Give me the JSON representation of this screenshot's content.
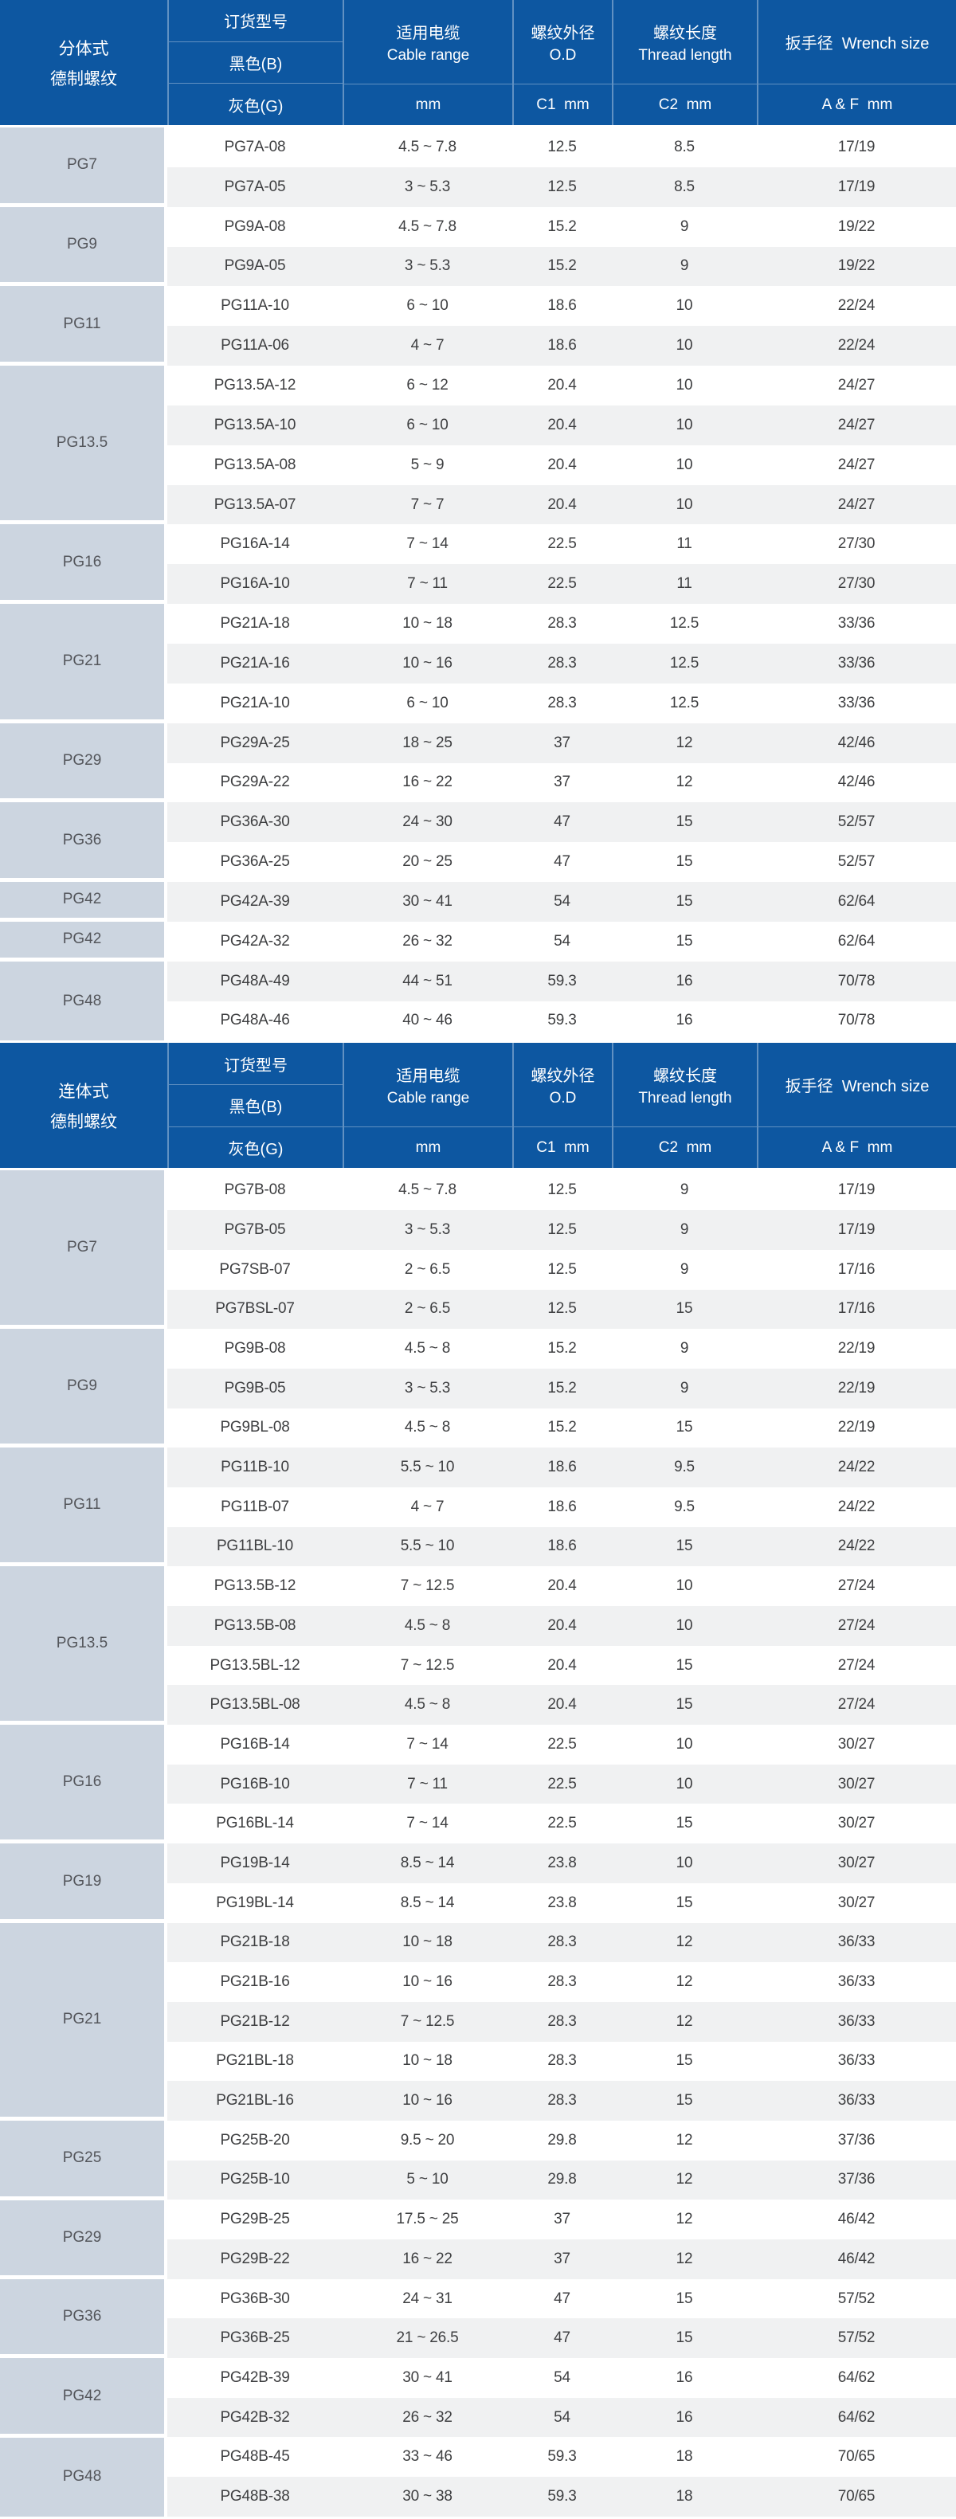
{
  "colors": {
    "header_blue": "#0d57a1",
    "size_cell_bg": "#ccd5e0",
    "size_cell_text": "#54565b",
    "row_bg": "#ffffff",
    "row_alt_bg": "#f0f1f2",
    "body_text": "#3e3f41",
    "header_text": "#ffffff"
  },
  "sections": [
    {
      "type_line1": "分体式",
      "type_line2": "德制螺纹",
      "header": {
        "order_label": "订货型号",
        "black_label": "黑色(B)",
        "gray_label": "灰色(G)",
        "cable_zh": "适用电缆",
        "cable_en": "Cable range",
        "cable_unit": "mm",
        "od_zh": "螺纹外径",
        "od_en": "O.D",
        "od_unit": "C1  mm",
        "len_zh": "螺纹长度",
        "len_en": "Thread length",
        "len_unit": "C2  mm",
        "wrench_zh": "扳手径  Wrench size",
        "wrench_en": "",
        "wrench_unit": "A & F  mm"
      },
      "groups": [
        {
          "size": "PG7",
          "rows": [
            [
              "PG7A-08",
              "4.5 ~ 7.8",
              "12.5",
              "8.5",
              "17/19"
            ],
            [
              "PG7A-05",
              "3 ~ 5.3",
              "12.5",
              "8.5",
              "17/19"
            ]
          ]
        },
        {
          "size": "PG9",
          "rows": [
            [
              "PG9A-08",
              "4.5 ~ 7.8",
              "15.2",
              "9",
              "19/22"
            ],
            [
              "PG9A-05",
              "3 ~ 5.3",
              "15.2",
              "9",
              "19/22"
            ]
          ]
        },
        {
          "size": "PG11",
          "rows": [
            [
              "PG11A-10",
              "6 ~ 10",
              "18.6",
              "10",
              "22/24"
            ],
            [
              "PG11A-06",
              "4 ~ 7",
              "18.6",
              "10",
              "22/24"
            ]
          ]
        },
        {
          "size": "PG13.5",
          "rows": [
            [
              "PG13.5A-12",
              "6 ~ 12",
              "20.4",
              "10",
              "24/27"
            ],
            [
              "PG13.5A-10",
              "6 ~ 10",
              "20.4",
              "10",
              "24/27"
            ],
            [
              "PG13.5A-08",
              "5 ~ 9",
              "20.4",
              "10",
              "24/27"
            ],
            [
              "PG13.5A-07",
              "7 ~ 7",
              "20.4",
              "10",
              "24/27"
            ]
          ]
        },
        {
          "size": "PG16",
          "rows": [
            [
              "PG16A-14",
              "7 ~ 14",
              "22.5",
              "11",
              "27/30"
            ],
            [
              "PG16A-10",
              "7 ~ 11",
              "22.5",
              "11",
              "27/30"
            ]
          ]
        },
        {
          "size": "PG21",
          "rows": [
            [
              "PG21A-18",
              "10 ~ 18",
              "28.3",
              "12.5",
              "33/36"
            ],
            [
              "PG21A-16",
              "10 ~ 16",
              "28.3",
              "12.5",
              "33/36"
            ],
            [
              "PG21A-10",
              "6 ~ 10",
              "28.3",
              "12.5",
              "33/36"
            ]
          ]
        },
        {
          "size": "PG29",
          "rows": [
            [
              "PG29A-25",
              "18 ~ 25",
              "37",
              "12",
              "42/46"
            ],
            [
              "PG29A-22",
              "16 ~ 22",
              "37",
              "12",
              "42/46"
            ]
          ]
        },
        {
          "size": "PG36",
          "rows": [
            [
              "PG36A-30",
              "24 ~ 30",
              "47",
              "15",
              "52/57"
            ],
            [
              "PG36A-25",
              "20 ~ 25",
              "47",
              "15",
              "52/57"
            ]
          ]
        },
        {
          "size": "PG42",
          "rows": [
            [
              "PG42A-39",
              "30 ~ 41",
              "54",
              "15",
              "62/64"
            ]
          ]
        },
        {
          "size": "PG42",
          "rows": [
            [
              "PG42A-32",
              "26 ~ 32",
              "54",
              "15",
              "62/64"
            ]
          ]
        },
        {
          "size": "PG48",
          "rows": [
            [
              "PG48A-49",
              "44 ~ 51",
              "59.3",
              "16",
              "70/78"
            ],
            [
              "PG48A-46",
              "40 ~ 46",
              "59.3",
              "16",
              "70/78"
            ]
          ]
        }
      ]
    },
    {
      "type_line1": "连体式",
      "type_line2": "德制螺纹",
      "header": {
        "order_label": "订货型号",
        "black_label": "黑色(B)",
        "gray_label": "灰色(G)",
        "cable_zh": "适用电缆",
        "cable_en": "Cable range",
        "cable_unit": "mm",
        "od_zh": "螺纹外径",
        "od_en": "O.D",
        "od_unit": "C1  mm",
        "len_zh": "螺纹长度",
        "len_en": "Thread length",
        "len_unit": "C2  mm",
        "wrench_zh": "扳手径  Wrench size",
        "wrench_en": "",
        "wrench_unit": "A & F  mm"
      },
      "groups": [
        {
          "size": "PG7",
          "rows": [
            [
              "PG7B-08",
              "4.5 ~ 7.8",
              "12.5",
              "9",
              "17/19"
            ],
            [
              "PG7B-05",
              "3 ~ 5.3",
              "12.5",
              "9",
              "17/19"
            ],
            [
              "PG7SB-07",
              "2 ~ 6.5",
              "12.5",
              "9",
              "17/16"
            ],
            [
              "PG7BSL-07",
              "2 ~ 6.5",
              "12.5",
              "15",
              "17/16"
            ]
          ]
        },
        {
          "size": "PG9",
          "rows": [
            [
              "PG9B-08",
              "4.5 ~ 8",
              "15.2",
              "9",
              "22/19"
            ],
            [
              "PG9B-05",
              "3 ~ 5.3",
              "15.2",
              "9",
              "22/19"
            ],
            [
              "PG9BL-08",
              "4.5 ~ 8",
              "15.2",
              "15",
              "22/19"
            ]
          ]
        },
        {
          "size": "PG11",
          "rows": [
            [
              "PG11B-10",
              "5.5 ~ 10",
              "18.6",
              "9.5",
              "24/22"
            ],
            [
              "PG11B-07",
              "4 ~ 7",
              "18.6",
              "9.5",
              "24/22"
            ],
            [
              "PG11BL-10",
              "5.5 ~ 10",
              "18.6",
              "15",
              "24/22"
            ]
          ]
        },
        {
          "size": "PG13.5",
          "rows": [
            [
              "PG13.5B-12",
              "7 ~ 12.5",
              "20.4",
              "10",
              "27/24"
            ],
            [
              "PG13.5B-08",
              "4.5 ~ 8",
              "20.4",
              "10",
              "27/24"
            ],
            [
              "PG13.5BL-12",
              "7 ~ 12.5",
              "20.4",
              "15",
              "27/24"
            ],
            [
              "PG13.5BL-08",
              "4.5 ~ 8",
              "20.4",
              "15",
              "27/24"
            ]
          ]
        },
        {
          "size": "PG16",
          "rows": [
            [
              "PG16B-14",
              "7 ~ 14",
              "22.5",
              "10",
              "30/27"
            ],
            [
              "PG16B-10",
              "7 ~ 11",
              "22.5",
              "10",
              "30/27"
            ],
            [
              "PG16BL-14",
              "7 ~ 14",
              "22.5",
              "15",
              "30/27"
            ]
          ]
        },
        {
          "size": "PG19",
          "rows": [
            [
              "PG19B-14",
              "8.5 ~ 14",
              "23.8",
              "10",
              "30/27"
            ],
            [
              "PG19BL-14",
              "8.5 ~ 14",
              "23.8",
              "15",
              "30/27"
            ]
          ]
        },
        {
          "size": "PG21",
          "rows": [
            [
              "PG21B-18",
              "10 ~ 18",
              "28.3",
              "12",
              "36/33"
            ],
            [
              "PG21B-16",
              "10 ~ 16",
              "28.3",
              "12",
              "36/33"
            ],
            [
              "PG21B-12",
              "7 ~ 12.5",
              "28.3",
              "12",
              "36/33"
            ],
            [
              "PG21BL-18",
              "10 ~ 18",
              "28.3",
              "15",
              "36/33"
            ],
            [
              "PG21BL-16",
              "10 ~ 16",
              "28.3",
              "15",
              "36/33"
            ]
          ]
        },
        {
          "size": "PG25",
          "rows": [
            [
              "PG25B-20",
              "9.5 ~ 20",
              "29.8",
              "12",
              "37/36"
            ],
            [
              "PG25B-10",
              "5 ~ 10",
              "29.8",
              "12",
              "37/36"
            ]
          ]
        },
        {
          "size": "PG29",
          "rows": [
            [
              "PG29B-25",
              "17.5 ~ 25",
              "37",
              "12",
              "46/42"
            ],
            [
              "PG29B-22",
              "16 ~ 22",
              "37",
              "12",
              "46/42"
            ]
          ]
        },
        {
          "size": "PG36",
          "rows": [
            [
              "PG36B-30",
              "24 ~ 31",
              "47",
              "15",
              "57/52"
            ],
            [
              "PG36B-25",
              "21 ~ 26.5",
              "47",
              "15",
              "57/52"
            ]
          ]
        },
        {
          "size": "PG42",
          "rows": [
            [
              "PG42B-39",
              "30 ~ 41",
              "54",
              "16",
              "64/62"
            ],
            [
              "PG42B-32",
              "26 ~ 32",
              "54",
              "16",
              "64/62"
            ]
          ]
        },
        {
          "size": "PG48",
          "rows": [
            [
              "PG48B-45",
              "33 ~ 46",
              "59.3",
              "18",
              "70/65"
            ],
            [
              "PG48B-38",
              "30 ~ 38",
              "59.3",
              "18",
              "70/65"
            ]
          ]
        }
      ]
    }
  ]
}
